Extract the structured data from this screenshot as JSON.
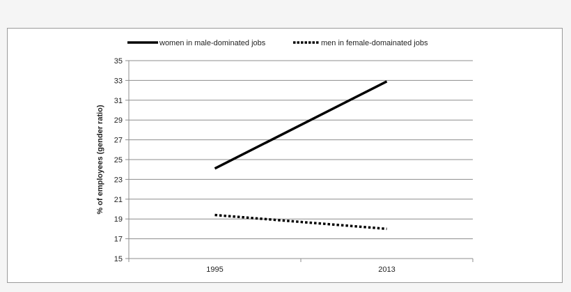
{
  "chart_data": {
    "type": "line",
    "title": "",
    "xlabel": "",
    "ylabel": "% of employees (gender ratio)",
    "categories": [
      "1995",
      "2013"
    ],
    "ylim": [
      15,
      35
    ],
    "yticks": [
      "15",
      "17",
      "19",
      "21",
      "23",
      "25",
      "27",
      "29",
      "31",
      "33",
      "35"
    ],
    "grid": true,
    "legend_position": "top",
    "series": [
      {
        "name": "women in male-dominated jobs",
        "values": [
          24.1,
          32.9
        ],
        "style": "solid",
        "color": "#000000"
      },
      {
        "name": "men in female-domainated jobs",
        "values": [
          19.4,
          18.0
        ],
        "style": "dotted",
        "color": "#000000"
      }
    ]
  }
}
